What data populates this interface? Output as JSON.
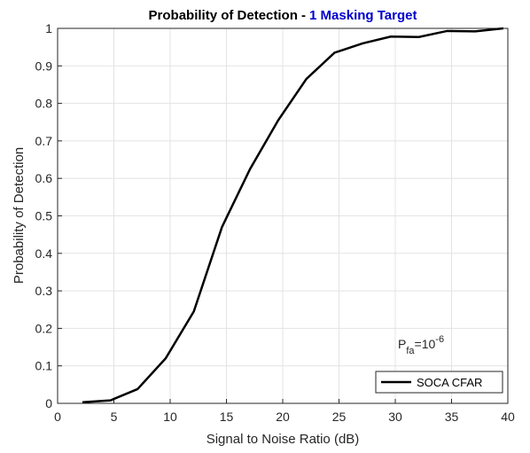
{
  "chart_data": {
    "type": "line",
    "title": {
      "text": "Probability of Detection -",
      "highlight": "1 Masking Target",
      "highlight_color": "#0000cc"
    },
    "x_label": "Signal to Noise Ratio (dB)",
    "y_label": "Probability of Detection",
    "x": [
      2.2,
      4.7,
      7.1,
      9.6,
      12.1,
      14.6,
      17.1,
      19.6,
      22.1,
      24.6,
      27.1,
      29.6,
      32.1,
      34.6,
      37.1,
      39.6
    ],
    "series": [
      {
        "name": "SOCA CFAR",
        "color": "#000000",
        "values": [
          0.003,
          0.008,
          0.038,
          0.12,
          0.245,
          0.47,
          0.625,
          0.755,
          0.865,
          0.935,
          0.96,
          0.978,
          0.977,
          0.993,
          0.992,
          1.0
        ]
      }
    ],
    "xlim": [
      0,
      40
    ],
    "xticks": [
      0,
      5,
      10,
      15,
      20,
      25,
      30,
      35,
      40
    ],
    "ylim": [
      0,
      1
    ],
    "yticks": [
      0,
      0.1,
      0.2,
      0.3,
      0.4,
      0.5,
      0.6,
      0.7,
      0.8,
      0.9,
      1
    ],
    "grid": true,
    "legend_position": "lower-right",
    "annotation": {
      "base": "P",
      "sub": "fa",
      "text": "=10",
      "sup": "-6"
    }
  }
}
